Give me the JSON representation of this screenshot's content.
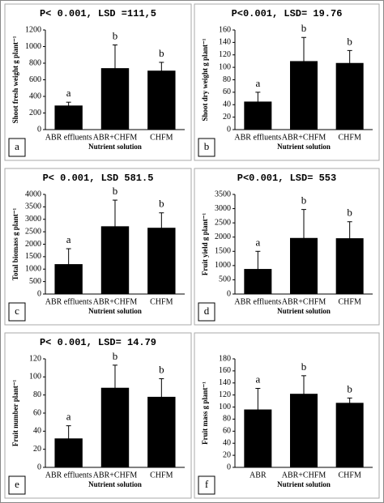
{
  "chart_data": [
    {
      "type": "bar",
      "title": "P< 0.001, LSD =111,5",
      "ylabel": "Shoot fresh weight g plant⁻¹",
      "xlabel": "Nutrient solution",
      "panel_label": "a",
      "categories": [
        "ABR effluents",
        "ABR+CHFM",
        "CHFM"
      ],
      "values": [
        290,
        740,
        710
      ],
      "errors": [
        40,
        280,
        100
      ],
      "annotations": [
        "a",
        "b",
        "b"
      ],
      "color": "#000000",
      "ylim": [
        0,
        1200
      ],
      "yticks": [
        0,
        200,
        400,
        600,
        800,
        1000,
        1200
      ]
    },
    {
      "type": "bar",
      "title": "P<0.001, LSD= 19.76",
      "ylabel": "Shoot dry weight g plant⁻¹",
      "xlabel": "Nutrient solution",
      "panel_label": "b",
      "categories": [
        "ABR effluents",
        "ABR+CHFM",
        "CHFM"
      ],
      "values": [
        45,
        110,
        107
      ],
      "errors": [
        15,
        38,
        20
      ],
      "annotations": [
        "a",
        "b",
        "b"
      ],
      "color": "#000000",
      "ylim": [
        0,
        160
      ],
      "yticks": [
        0,
        20,
        40,
        60,
        80,
        100,
        120,
        140,
        160
      ]
    },
    {
      "type": "bar",
      "title": "P< 0.001, LSD 581.5",
      "ylabel": "Total biomass g plant⁻¹",
      "xlabel": "Nutrient solution",
      "panel_label": "c",
      "categories": [
        "ABR effluents",
        "ABR+CHFM",
        "CHFM"
      ],
      "values": [
        1200,
        2720,
        2660
      ],
      "errors": [
        620,
        1050,
        600
      ],
      "annotations": [
        "a",
        "b",
        "b"
      ],
      "color": "#000000",
      "ylim": [
        0,
        4000
      ],
      "yticks": [
        0,
        500,
        1000,
        1500,
        2000,
        2500,
        3000,
        3500,
        4000
      ]
    },
    {
      "type": "bar",
      "title": "P<0.001, LSD= 553",
      "ylabel": "Fruit yield g plant⁻¹",
      "xlabel": "Nutrient solution",
      "panel_label": "d",
      "categories": [
        "ABR effluents",
        "ABR+CHFM",
        "CHFM"
      ],
      "values": [
        880,
        1970,
        1960
      ],
      "errors": [
        620,
        1000,
        580
      ],
      "annotations": [
        "a",
        "b",
        "b"
      ],
      "color": "#000000",
      "ylim": [
        0,
        3500
      ],
      "yticks": [
        0,
        500,
        1000,
        1500,
        2000,
        2500,
        3000,
        3500
      ]
    },
    {
      "type": "bar",
      "title": "P< 0.001, LSD= 14.79",
      "ylabel": "Fruit number plant⁻¹",
      "xlabel": "Nutrient solution",
      "panel_label": "e",
      "categories": [
        "ABR effluents",
        "ABR+CHFM",
        "CHFM"
      ],
      "values": [
        32,
        88,
        78
      ],
      "errors": [
        14,
        25,
        20
      ],
      "annotations": [
        "a",
        "b",
        "b"
      ],
      "color": "#000000",
      "ylim": [
        0,
        120
      ],
      "yticks": [
        0,
        20,
        40,
        60,
        80,
        100,
        120
      ]
    },
    {
      "type": "bar",
      "ylabel": "Fruit mass g plant⁻¹",
      "xlabel": "Nutrient solution",
      "panel_label": "f",
      "categories": [
        "ABR",
        "ABR+CHFM",
        "CHFM"
      ],
      "values": [
        96,
        122,
        107
      ],
      "errors": [
        35,
        30,
        8
      ],
      "annotations": [
        "a",
        "b",
        "b"
      ],
      "color": "#000000",
      "ylim": [
        0,
        180
      ],
      "yticks": [
        0,
        20,
        40,
        60,
        80,
        100,
        120,
        140,
        160,
        180
      ]
    }
  ]
}
